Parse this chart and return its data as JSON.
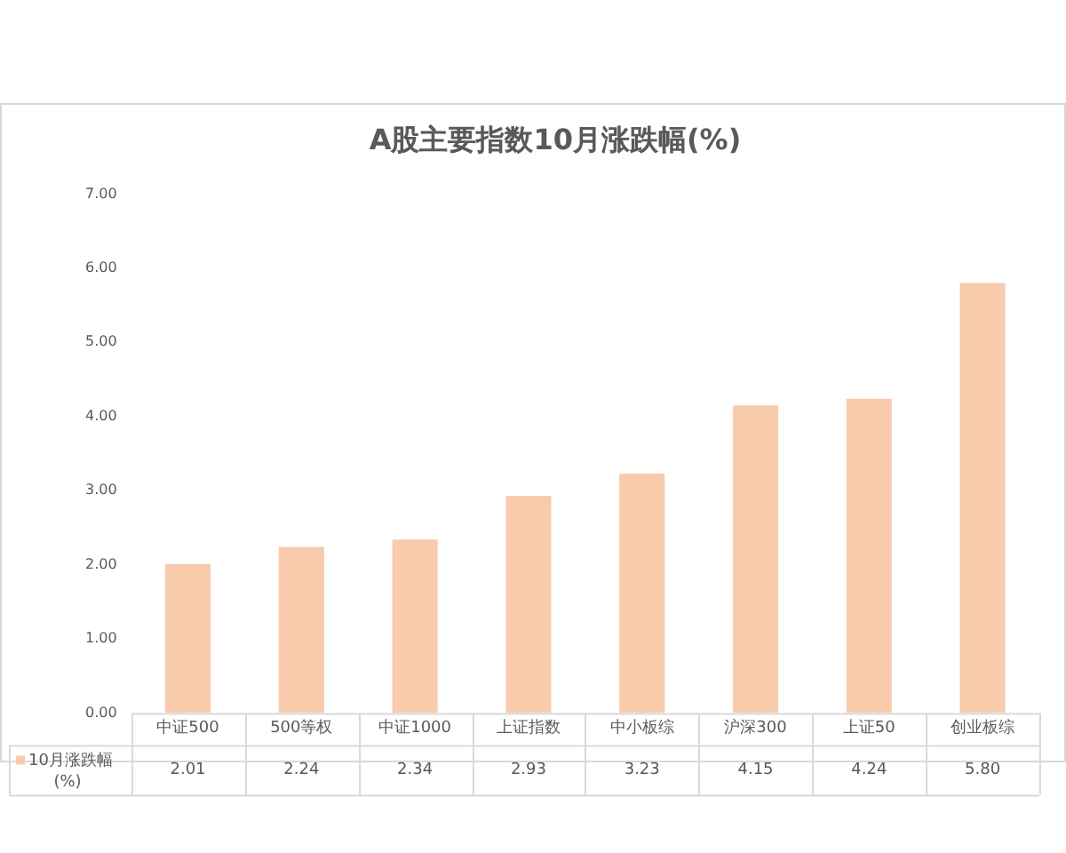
{
  "chart_data": {
    "type": "bar",
    "title": "A股主要指数10月涨跌幅(%)",
    "categories": [
      "中证500",
      "500等权",
      "中证1000",
      "上证指数",
      "中小板综",
      "沪深300",
      "上证50",
      "创业板综"
    ],
    "series": [
      {
        "name": "10月涨跌幅(%)",
        "color": "#f8cbad",
        "values": [
          2.01,
          2.24,
          2.34,
          2.93,
          3.23,
          4.15,
          4.24,
          5.8
        ],
        "value_labels": [
          "2.01",
          "2.24",
          "2.34",
          "2.93",
          "3.23",
          "4.15",
          "4.24",
          "5.80"
        ]
      }
    ],
    "ylim": [
      0,
      7
    ],
    "yticks": [
      {
        "value": 0,
        "label": "0.00"
      },
      {
        "value": 1,
        "label": "1.00"
      },
      {
        "value": 2,
        "label": "2.00"
      },
      {
        "value": 3,
        "label": "3.00"
      },
      {
        "value": 4,
        "label": "4.00"
      },
      {
        "value": 5,
        "label": "5.00"
      },
      {
        "value": 6,
        "label": "6.00"
      },
      {
        "value": 7,
        "label": "7.00"
      }
    ],
    "legend": "bottom"
  }
}
